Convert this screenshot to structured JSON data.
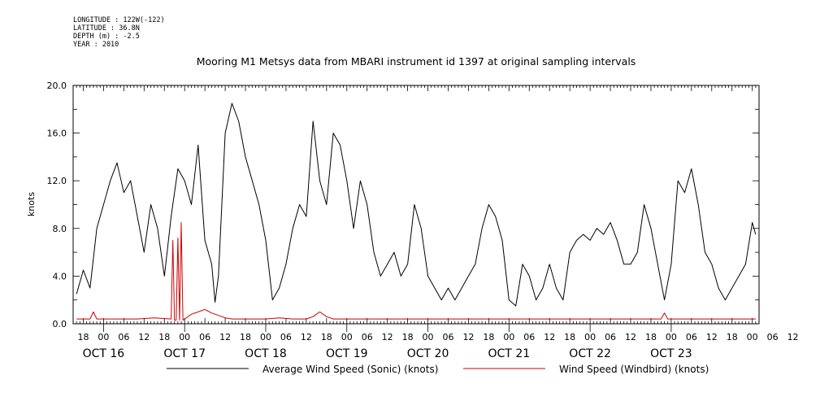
{
  "metadata": {
    "longitude": "LONGITUDE : 122W(-122)",
    "latitude": "LATITUDE : 36.8N",
    "depth": "DEPTH (m) : -2.5",
    "year": "YEAR : 2010"
  },
  "chart_data": {
    "type": "line",
    "title": "Mooring M1 Metsys data from MBARI instrument id 1397 at original sampling intervals",
    "ylabel": "knots",
    "xlabel": "",
    "ylim": [
      0,
      20
    ],
    "xlim_hours": [
      -9,
      194
    ],
    "yticks": [
      "0.0",
      "4.0",
      "8.0",
      "12.0",
      "16.0",
      "20.0"
    ],
    "hour_tick_labels": [
      "18",
      "00",
      "06",
      "12",
      "18",
      "00",
      "06",
      "12",
      "18",
      "00",
      "06",
      "12",
      "18",
      "00",
      "06",
      "12",
      "18",
      "00",
      "06",
      "12",
      "18",
      "00",
      "06",
      "12",
      "18",
      "00",
      "06",
      "12",
      "18",
      "00",
      "06",
      "12",
      "18",
      "00",
      "06",
      "12"
    ],
    "day_labels": [
      "OCT 16",
      "OCT 17",
      "OCT 18",
      "OCT 19",
      "OCT 20",
      "OCT 21",
      "OCT 22",
      "OCT 23"
    ],
    "grid": false,
    "legend_position": "bottom",
    "series": [
      {
        "name": "Average Wind Speed (Sonic) (knots)",
        "color": "#000000",
        "x": [
          -8,
          -6,
          -4,
          -2,
          0,
          2,
          4,
          6,
          8,
          10,
          12,
          14,
          16,
          18,
          20,
          22,
          24,
          26,
          28,
          30,
          32,
          33,
          34,
          36,
          38,
          40,
          42,
          44,
          46,
          48,
          50,
          52,
          54,
          56,
          58,
          60,
          62,
          64,
          66,
          68,
          70,
          72,
          74,
          76,
          78,
          80,
          82,
          84,
          86,
          88,
          90,
          92,
          94,
          96,
          98,
          100,
          102,
          104,
          106,
          108,
          110,
          112,
          114,
          116,
          118,
          120,
          122,
          124,
          126,
          128,
          130,
          132,
          134,
          136,
          138,
          140,
          142,
          144,
          146,
          148,
          150,
          152,
          154,
          156,
          158,
          160,
          162,
          164,
          166,
          168,
          170,
          172,
          174,
          176,
          178,
          180,
          182,
          184,
          186,
          188,
          190,
          192,
          193
        ],
        "y": [
          2.5,
          4.5,
          3,
          8,
          10,
          12,
          13.5,
          11,
          12,
          9,
          6,
          10,
          8,
          4,
          9,
          13,
          12,
          10,
          15,
          7,
          5,
          1.8,
          4,
          16,
          18.5,
          17,
          14,
          12,
          10,
          7,
          2,
          3,
          5,
          8,
          10,
          9,
          17,
          12,
          10,
          16,
          15,
          12,
          8,
          12,
          10,
          6,
          4,
          5,
          6,
          4,
          5,
          10,
          8,
          4,
          3,
          2,
          3,
          2,
          3,
          4,
          5,
          8,
          10,
          9,
          7,
          2,
          1.5,
          5,
          4,
          2,
          3,
          5,
          3,
          2,
          6,
          7,
          7.5,
          7,
          8,
          7.5,
          8.5,
          7,
          5,
          5,
          6,
          10,
          8,
          5,
          2,
          5,
          12,
          11,
          13,
          10,
          6,
          5,
          3,
          2,
          3,
          4,
          5,
          8.5,
          7.5
        ]
      },
      {
        "name": "Wind Speed (Windbird) (knots)",
        "color": "#cc0000",
        "x": [
          -8,
          -4,
          -3,
          -2,
          0,
          10,
          15,
          20,
          20.5,
          21,
          21.5,
          22,
          22.5,
          23,
          23.5,
          24,
          26,
          28,
          30,
          32,
          34,
          36,
          38,
          40,
          44,
          48,
          52,
          56,
          60,
          62,
          63,
          64,
          66,
          68,
          72,
          80,
          88,
          96,
          104,
          112,
          120,
          130,
          140,
          150,
          160,
          165,
          166,
          167,
          170,
          180,
          193
        ],
        "y": [
          0.4,
          0.4,
          1.0,
          0.4,
          0.4,
          0.4,
          0.5,
          0.4,
          7.0,
          0.3,
          0.3,
          7.2,
          0.3,
          8.5,
          0.3,
          0.4,
          0.8,
          1.0,
          1.2,
          0.9,
          0.7,
          0.5,
          0.4,
          0.4,
          0.4,
          0.4,
          0.5,
          0.4,
          0.4,
          0.6,
          0.8,
          1.0,
          0.6,
          0.4,
          0.4,
          0.4,
          0.4,
          0.4,
          0.4,
          0.4,
          0.4,
          0.4,
          0.4,
          0.4,
          0.4,
          0.4,
          0.9,
          0.4,
          0.4,
          0.4,
          0.4
        ]
      }
    ]
  }
}
